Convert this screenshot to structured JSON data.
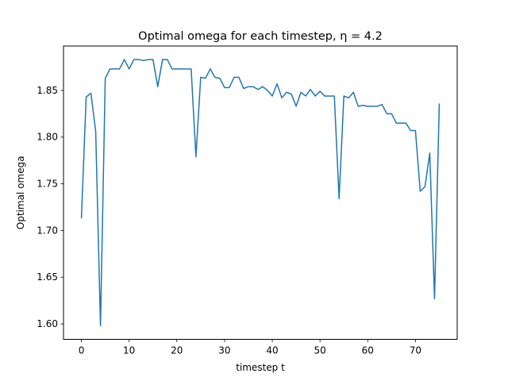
{
  "chart_data": {
    "type": "line",
    "title": "Optimal omega for each timestep, η = 4.2",
    "xlabel": "timestep t",
    "ylabel": "Optimal omega",
    "xlim": [
      -3.75,
      78.75
    ],
    "ylim": [
      1.5835,
      1.8975
    ],
    "xticks": [
      0,
      10,
      20,
      30,
      40,
      50,
      60,
      70
    ],
    "yticks": [
      1.6,
      1.65,
      1.7,
      1.75,
      1.8,
      1.85
    ],
    "ytick_labels": [
      "1.60",
      "1.65",
      "1.70",
      "1.75",
      "1.80",
      "1.85"
    ],
    "grid": false,
    "series": [
      {
        "color": "#1f77b4",
        "x": [
          0,
          1,
          2,
          3,
          4,
          5,
          6,
          7,
          8,
          9,
          10,
          11,
          12,
          13,
          14,
          15,
          16,
          17,
          18,
          19,
          20,
          21,
          22,
          23,
          24,
          25,
          26,
          27,
          28,
          29,
          30,
          31,
          32,
          33,
          34,
          35,
          36,
          37,
          38,
          39,
          40,
          41,
          42,
          43,
          44,
          45,
          46,
          47,
          48,
          49,
          50,
          51,
          52,
          53,
          54,
          55,
          56,
          57,
          58,
          59,
          60,
          61,
          62,
          63,
          64,
          65,
          66,
          67,
          68,
          69,
          70,
          71,
          72,
          73,
          74,
          75
        ],
        "y": [
          1.713,
          1.843,
          1.847,
          1.806,
          1.598,
          1.863,
          1.873,
          1.873,
          1.873,
          1.883,
          1.873,
          1.883,
          1.883,
          1.882,
          1.883,
          1.883,
          1.854,
          1.883,
          1.883,
          1.873,
          1.873,
          1.873,
          1.873,
          1.873,
          1.779,
          1.864,
          1.863,
          1.873,
          1.864,
          1.863,
          1.853,
          1.853,
          1.864,
          1.864,
          1.852,
          1.854,
          1.854,
          1.851,
          1.854,
          1.85,
          1.844,
          1.857,
          1.842,
          1.848,
          1.846,
          1.833,
          1.848,
          1.844,
          1.851,
          1.844,
          1.849,
          1.844,
          1.844,
          1.844,
          1.734,
          1.844,
          1.842,
          1.848,
          1.833,
          1.834,
          1.833,
          1.833,
          1.833,
          1.835,
          1.825,
          1.825,
          1.815,
          1.815,
          1.815,
          1.807,
          1.807,
          1.742,
          1.747,
          1.783,
          1.627,
          1.836
        ]
      }
    ]
  }
}
